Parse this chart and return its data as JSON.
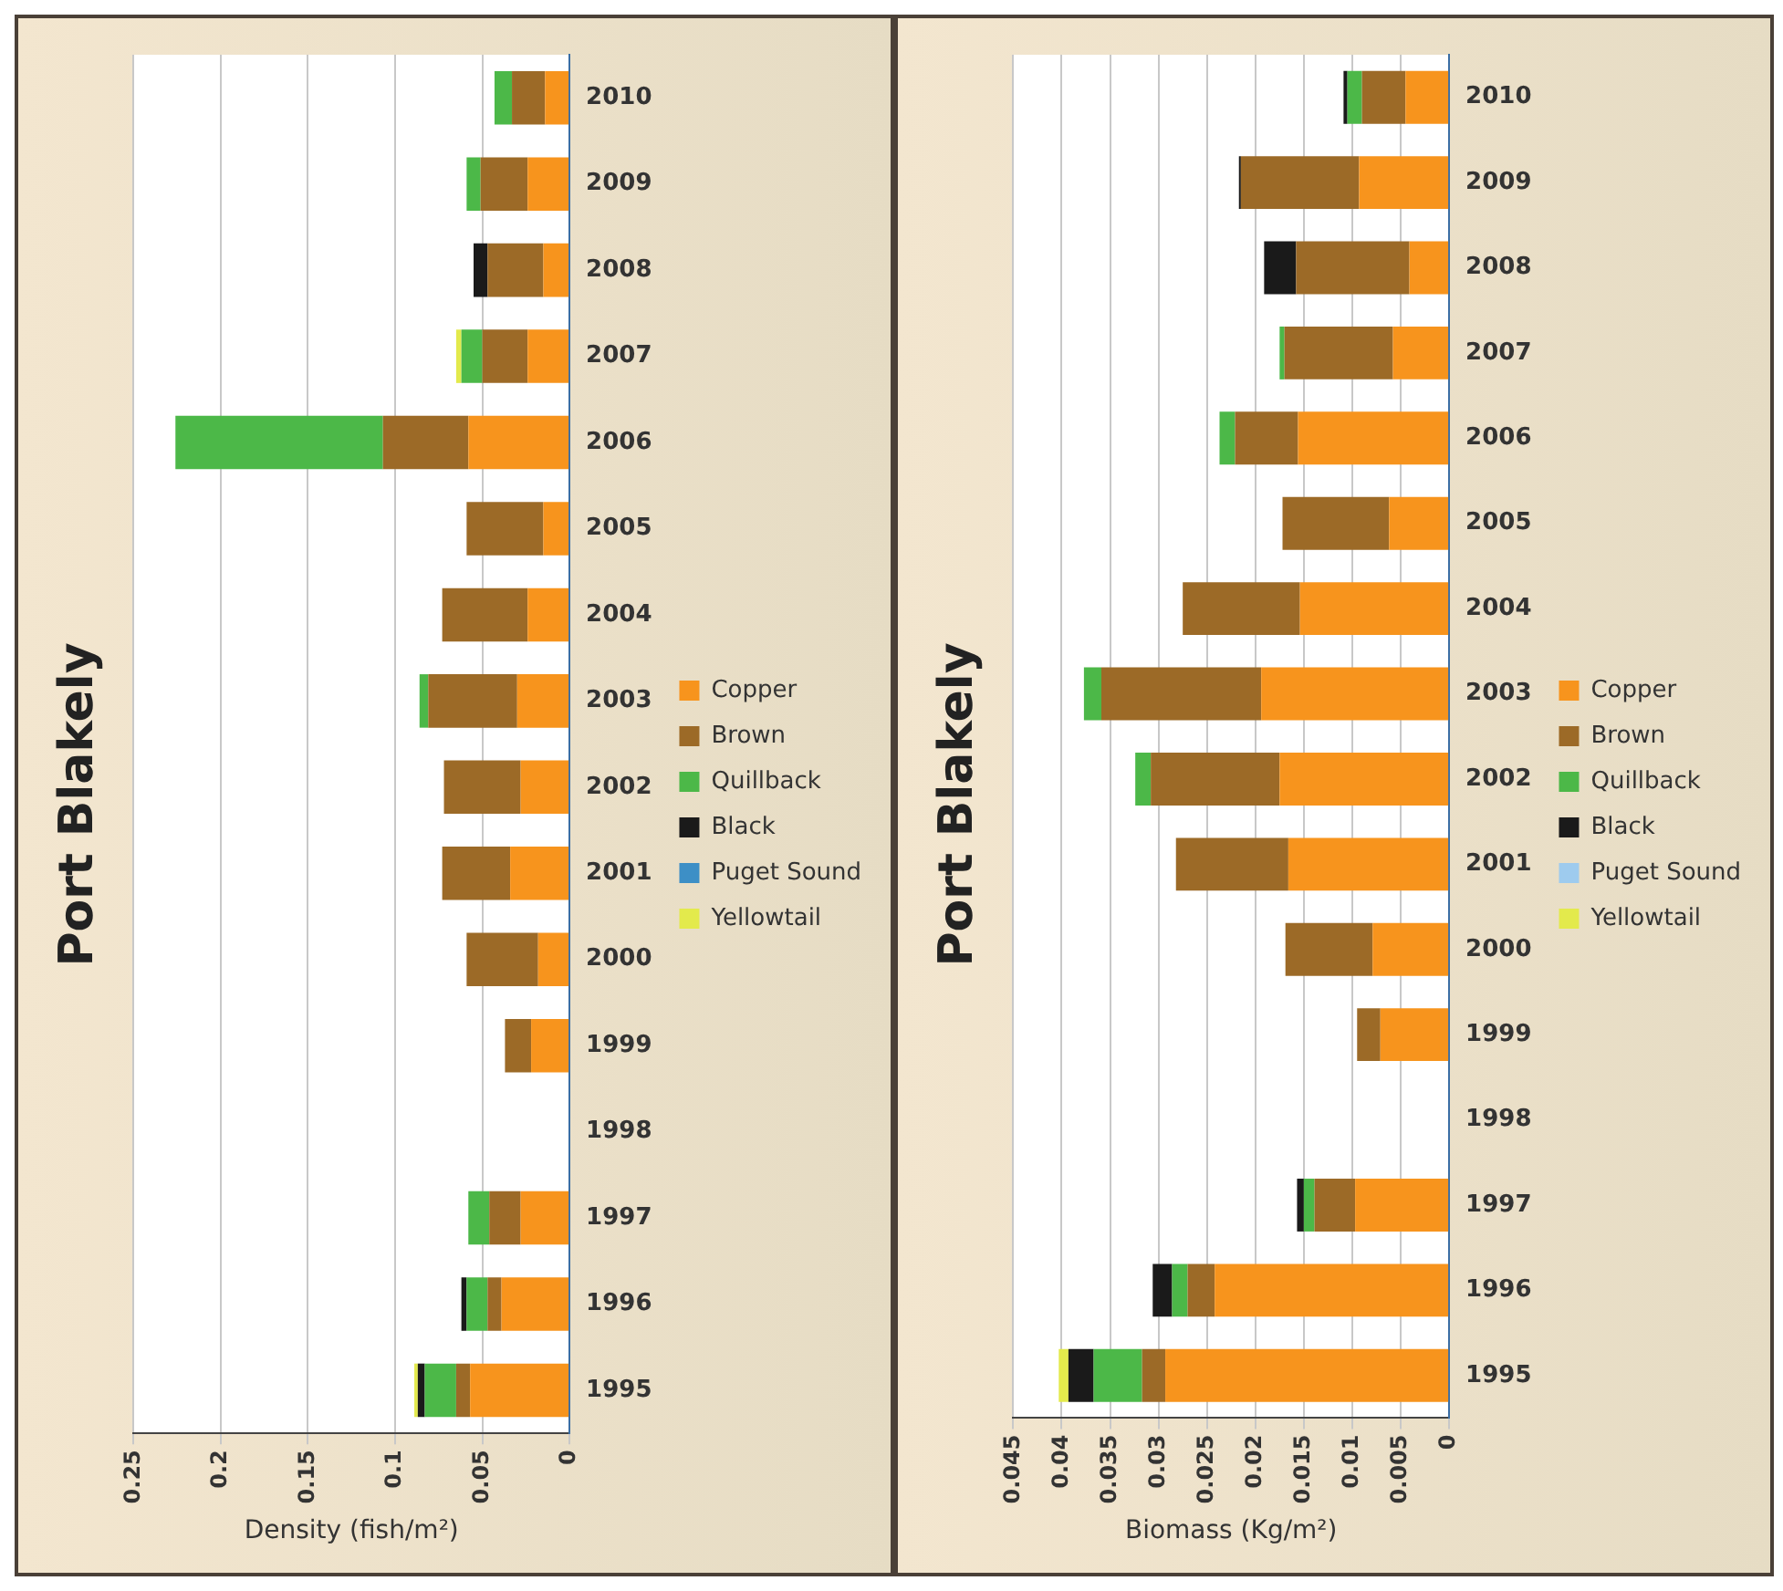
{
  "chart_data": [
    {
      "type": "bar",
      "title": "Port Blakely",
      "xlabel": "Density (fish/m²)",
      "orientation": "horizontal",
      "stacked": true,
      "legend": "right",
      "grid": "x",
      "xlim": [
        0.25,
        0
      ],
      "xticks": [
        0.25,
        0.2,
        0.15,
        0.1,
        0.05,
        0
      ],
      "categories": [
        "2010",
        "2009",
        "2008",
        "2007",
        "2006",
        "2005",
        "2004",
        "2003",
        "2002",
        "2001",
        "2000",
        "1999",
        "1998",
        "1997",
        "1996",
        "1995"
      ],
      "series": [
        {
          "name": "Copper",
          "color": "#f7941d",
          "values": [
            0.014,
            0.024,
            0.015,
            0.024,
            0.058,
            0.015,
            0.024,
            0.03,
            0.028,
            0.034,
            0.018,
            0.022,
            null,
            0.028,
            0.039,
            0.057
          ]
        },
        {
          "name": "Brown",
          "color": "#9c6a27",
          "values": [
            0.019,
            0.027,
            0.032,
            0.026,
            0.049,
            0.044,
            0.049,
            0.051,
            0.044,
            0.039,
            0.041,
            0.015,
            null,
            0.018,
            0.008,
            0.008
          ]
        },
        {
          "name": "Quillback",
          "color": "#4cb848",
          "values": [
            0.01,
            0.008,
            null,
            0.012,
            0.119,
            null,
            null,
            0.005,
            null,
            null,
            null,
            null,
            null,
            0.012,
            0.012,
            0.018
          ]
        },
        {
          "name": "Black",
          "color": "#1a1a1a",
          "values": [
            null,
            null,
            0.008,
            null,
            null,
            null,
            null,
            null,
            null,
            null,
            null,
            null,
            null,
            null,
            0.003,
            0.004
          ]
        },
        {
          "name": "Puget Sound",
          "color": "#3d8fc6",
          "values": [
            null,
            null,
            null,
            null,
            null,
            null,
            null,
            null,
            null,
            null,
            null,
            null,
            null,
            null,
            null,
            null
          ]
        },
        {
          "name": "Yellowtail",
          "color": "#e3ea4c",
          "values": [
            null,
            null,
            null,
            0.003,
            null,
            null,
            null,
            null,
            null,
            null,
            null,
            null,
            null,
            null,
            null,
            0.002
          ]
        }
      ]
    },
    {
      "type": "bar",
      "title": "Port Blakely",
      "xlabel": "Biomass (Kg/m²)",
      "orientation": "horizontal",
      "stacked": true,
      "legend": "right",
      "grid": "x",
      "xlim": [
        0.045,
        0
      ],
      "xticks": [
        0.045,
        0.04,
        0.035,
        0.03,
        0.025,
        0.02,
        0.015,
        0.01,
        0.005,
        0
      ],
      "categories": [
        "2010",
        "2009",
        "2008",
        "2007",
        "2006",
        "2005",
        "2004",
        "2003",
        "2002",
        "2001",
        "2000",
        "1999",
        "1998",
        "1997",
        "1996",
        "1995"
      ],
      "series": [
        {
          "name": "Copper",
          "color": "#f7941d",
          "values": [
            0.0045,
            0.0093,
            0.0041,
            0.0058,
            0.0156,
            0.0062,
            0.0154,
            0.0194,
            0.0175,
            0.0166,
            0.0079,
            0.0071,
            null,
            0.0097,
            0.0242,
            0.0293
          ]
        },
        {
          "name": "Brown",
          "color": "#9c6a27",
          "values": [
            0.0045,
            0.0122,
            0.0117,
            0.0112,
            0.0065,
            0.011,
            0.0121,
            0.0165,
            0.0133,
            0.0116,
            0.009,
            0.0024,
            null,
            0.0042,
            0.0028,
            0.0024
          ]
        },
        {
          "name": "Quillback",
          "color": "#4cb848",
          "values": [
            0.0015,
            null,
            null,
            0.0005,
            0.0016,
            null,
            null,
            0.0018,
            0.0016,
            null,
            null,
            null,
            null,
            0.0011,
            0.0016,
            0.005
          ]
        },
        {
          "name": "Black",
          "color": "#1a1a1a",
          "values": [
            0.0004,
            0.0002,
            0.0033,
            null,
            null,
            null,
            null,
            null,
            null,
            null,
            null,
            null,
            null,
            0.0007,
            0.002,
            0.0026
          ]
        },
        {
          "name": "Puget Sound",
          "color": "#9ecbee",
          "values": [
            null,
            null,
            null,
            null,
            null,
            null,
            null,
            null,
            null,
            null,
            null,
            null,
            null,
            null,
            null,
            null
          ]
        },
        {
          "name": "Yellowtail",
          "color": "#e3ea4c",
          "values": [
            null,
            null,
            null,
            null,
            null,
            null,
            null,
            null,
            null,
            null,
            null,
            null,
            null,
            null,
            null,
            0.001
          ]
        }
      ]
    }
  ]
}
